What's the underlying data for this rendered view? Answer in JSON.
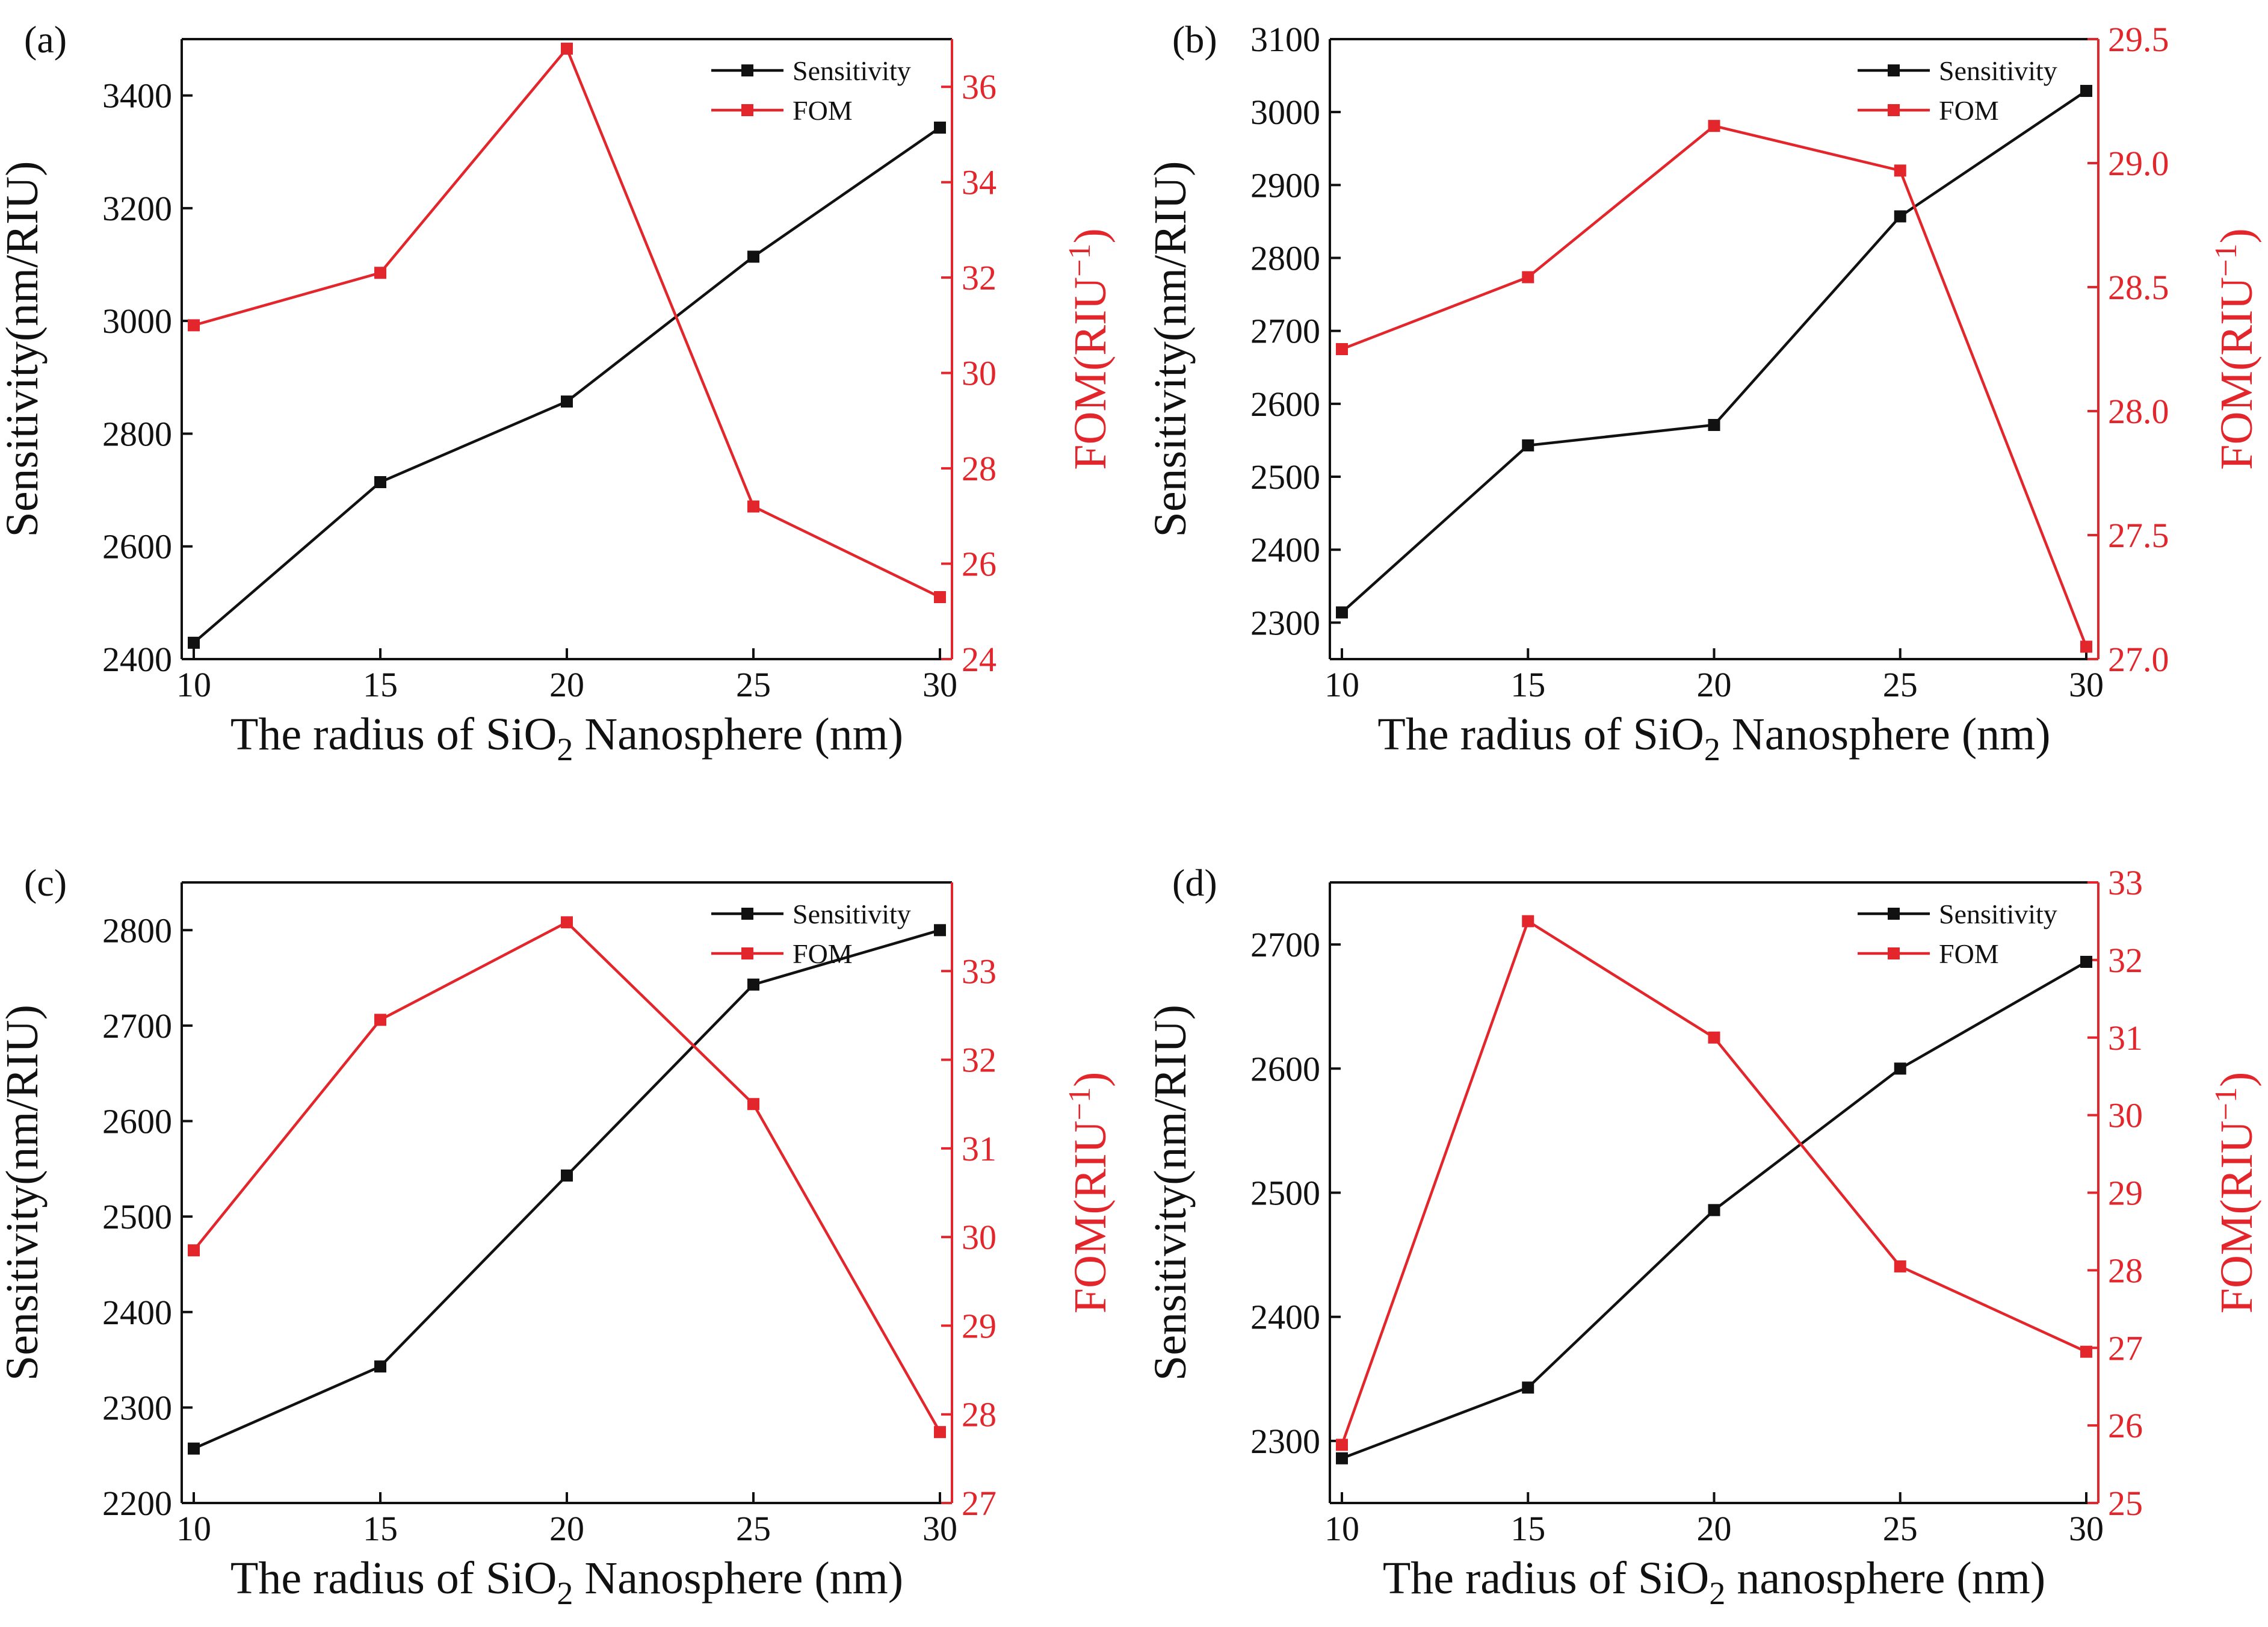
{
  "colors": {
    "sensitivity": "#111111",
    "fom": "#e3262b"
  },
  "chart_data": [
    {
      "panel_label": "(a)",
      "type": "line",
      "x": [
        10,
        15,
        20,
        25,
        30
      ],
      "xlim": [
        10,
        30
      ],
      "xticks": [
        "10",
        "15",
        "20",
        "25",
        "30"
      ],
      "xlabel": {
        "pre": "The radius of SiO",
        "sub": "2",
        "post": " Nanosphere (nm)"
      },
      "ylabel_left": "Sensitivity(nm/RIU)",
      "ylabel_right": {
        "pre": "FOM(RIU",
        "sup": "−1",
        "post": ")"
      },
      "ylim_left": [
        2400,
        3500
      ],
      "yticks_left": [
        2400,
        2600,
        2800,
        3000,
        3200,
        3400
      ],
      "ylim_right": [
        24,
        37
      ],
      "yticks_right": [
        24,
        26,
        28,
        30,
        32,
        34,
        36
      ],
      "series": [
        {
          "name": "Sensitivity",
          "axis": "left",
          "values": [
            2429,
            2714,
            2857,
            3114,
            3343
          ]
        },
        {
          "name": "FOM",
          "axis": "right",
          "values": [
            31.0,
            32.1,
            36.8,
            27.2,
            25.3
          ]
        }
      ],
      "legend": [
        "Sensitivity",
        "FOM"
      ],
      "legend_position": "top-right"
    },
    {
      "panel_label": "(b)",
      "type": "line",
      "x": [
        10,
        15,
        20,
        25,
        30
      ],
      "xlim": [
        10,
        30
      ],
      "xticks": [
        "10",
        "15",
        "20",
        "25",
        "30"
      ],
      "xlabel": {
        "pre": "The radius of SiO",
        "sub": "2",
        "post": " Nanosphere (nm)"
      },
      "ylabel_left": "Sensitivity(nm/RIU)",
      "ylabel_right": {
        "pre": "FOM(RIU",
        "sup": "−1",
        "post": ")"
      },
      "ylim_left": [
        2250,
        3100
      ],
      "yticks_left": [
        2300,
        2400,
        2500,
        2600,
        2700,
        2800,
        2900,
        3000,
        3100
      ],
      "ylim_right": [
        27.0,
        29.5
      ],
      "yticks_right": [
        "27.0",
        "27.5",
        "28.0",
        "28.5",
        "29.0",
        "29.5"
      ],
      "series": [
        {
          "name": "Sensitivity",
          "axis": "left",
          "values": [
            2314,
            2543,
            2571,
            2857,
            3029
          ]
        },
        {
          "name": "FOM",
          "axis": "right",
          "values": [
            28.25,
            28.54,
            29.15,
            28.97,
            27.05
          ]
        }
      ],
      "legend": [
        "Sensitivity",
        "FOM"
      ],
      "legend_position": "top-right"
    },
    {
      "panel_label": "(c)",
      "type": "line",
      "x": [
        10,
        15,
        20,
        25,
        30
      ],
      "xlim": [
        10,
        30
      ],
      "xticks": [
        "10",
        "15",
        "20",
        "25",
        "30"
      ],
      "xlabel": {
        "pre": "The radius of SiO",
        "sub": "2",
        "post": " Nanosphere (nm)"
      },
      "ylabel_left": "Sensitivity(nm/RIU)",
      "ylabel_right": {
        "pre": "FOM(RIU",
        "sup": "−1",
        "post": ")"
      },
      "ylim_left": [
        2200,
        2850
      ],
      "yticks_left": [
        2200,
        2300,
        2400,
        2500,
        2600,
        2700,
        2800
      ],
      "ylim_right": [
        27,
        34
      ],
      "yticks_right": [
        27,
        28,
        29,
        30,
        31,
        32,
        33
      ],
      "series": [
        {
          "name": "Sensitivity",
          "axis": "left",
          "values": [
            2257,
            2343,
            2543,
            2743,
            2800
          ]
        },
        {
          "name": "FOM",
          "axis": "right",
          "values": [
            29.85,
            32.45,
            33.55,
            31.5,
            27.8
          ]
        }
      ],
      "legend": [
        "Sensitivity",
        "FOM"
      ],
      "legend_position": "top-right"
    },
    {
      "panel_label": "(d)",
      "type": "line",
      "x": [
        10,
        15,
        20,
        25,
        30
      ],
      "xlim": [
        10,
        30
      ],
      "xticks": [
        "10",
        "15",
        "20",
        "25",
        "30"
      ],
      "xlabel": {
        "pre": "The radius of SiO",
        "sub": "2",
        "post": " nanosphere (nm)"
      },
      "ylabel_left": "Sensitivity(nm/RIU)",
      "ylabel_right": {
        "pre": "FOM(RIU",
        "sup": "−1",
        "post": ")"
      },
      "ylim_left": [
        2250,
        2750
      ],
      "yticks_left": [
        2300,
        2400,
        2500,
        2600,
        2700
      ],
      "ylim_right": [
        25,
        33
      ],
      "yticks_right": [
        25,
        26,
        27,
        28,
        29,
        30,
        31,
        32,
        33
      ],
      "series": [
        {
          "name": "Sensitivity",
          "axis": "left",
          "values": [
            2286,
            2343,
            2486,
            2600,
            2686
          ]
        },
        {
          "name": "FOM",
          "axis": "right",
          "values": [
            25.75,
            32.5,
            31.0,
            28.05,
            26.95
          ]
        }
      ],
      "legend": [
        "Sensitivity",
        "FOM"
      ],
      "legend_position": "top-right"
    }
  ]
}
